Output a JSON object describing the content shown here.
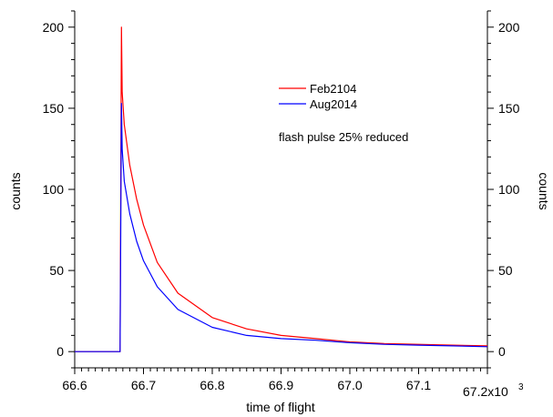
{
  "chart_data": {
    "type": "line",
    "xlabel": "time of flight",
    "ylabel_left": "counts",
    "ylabel_right": "counts",
    "xlim": [
      66.6,
      67.2
    ],
    "ylim": [
      -10,
      210
    ],
    "x_ticks": [
      "66.6",
      "66.7",
      "66.8",
      "66.9",
      "67.0",
      "67.1"
    ],
    "x_tick_values": [
      66.6,
      66.7,
      66.8,
      66.9,
      67.0,
      67.1
    ],
    "x_last_tick": "67.2x10",
    "x_last_tick_exp": "3",
    "y_ticks": [
      "0",
      "50",
      "100",
      "150",
      "200"
    ],
    "y_tick_values": [
      0,
      50,
      100,
      150,
      200
    ],
    "annotation": "flash pulse 25% reduced",
    "legend_position": "top-center",
    "grid": false,
    "series": [
      {
        "name": "Feb2104",
        "color": "#ff0000",
        "x": [
          66.6,
          66.66,
          66.666,
          66.668,
          66.669,
          66.672,
          66.68,
          66.69,
          66.7,
          66.72,
          66.75,
          66.8,
          66.85,
          66.9,
          66.95,
          67.0,
          67.05,
          67.1,
          67.15,
          67.2
        ],
        "values": [
          0,
          0,
          0,
          200,
          160,
          140,
          115,
          94,
          78,
          55,
          36,
          21,
          14,
          10,
          8,
          6,
          5,
          4.5,
          4,
          3.5
        ]
      },
      {
        "name": "Aug2014",
        "color": "#0000ff",
        "x": [
          66.6,
          66.66,
          66.666,
          66.668,
          66.669,
          66.672,
          66.68,
          66.69,
          66.7,
          66.72,
          66.75,
          66.8,
          66.85,
          66.9,
          66.95,
          67.0,
          67.05,
          67.1,
          67.15,
          67.2
        ],
        "values": [
          0,
          0,
          0,
          153,
          125,
          105,
          85,
          68,
          56,
          40,
          26,
          15,
          10,
          8,
          7,
          5.5,
          4.5,
          4,
          3.5,
          3
        ]
      }
    ]
  }
}
